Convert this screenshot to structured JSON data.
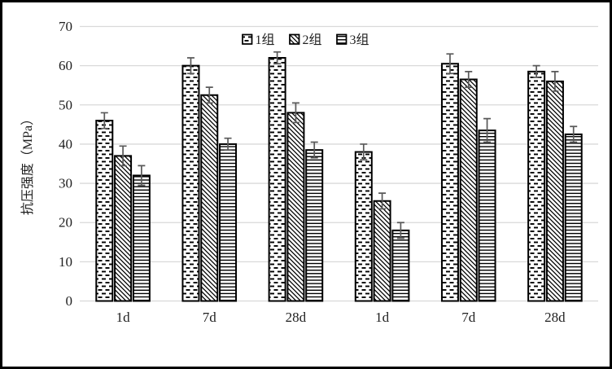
{
  "frame": {
    "background": "#ffffff",
    "border_color": "#000000"
  },
  "chart_data": {
    "type": "bar",
    "title": "",
    "categories": [
      "1d",
      "7d",
      "28d",
      "1d",
      "7d",
      "28d"
    ],
    "series": [
      {
        "name": "1组",
        "pattern": "dashed",
        "values": [
          46,
          60,
          62,
          38,
          60.5,
          58.5
        ],
        "errors": [
          2,
          2,
          1.5,
          2,
          2.5,
          1.5
        ]
      },
      {
        "name": "2组",
        "pattern": "diagonal",
        "values": [
          37,
          52.5,
          48,
          25.5,
          56.5,
          56
        ],
        "errors": [
          2.5,
          2,
          2.5,
          2,
          2,
          2.5
        ]
      },
      {
        "name": "3组",
        "pattern": "hlines",
        "values": [
          32,
          40,
          38.5,
          18,
          43.5,
          42.5
        ],
        "errors": [
          2.5,
          1.5,
          2,
          2,
          3,
          2
        ]
      }
    ],
    "xlabel": "",
    "ylabel": "抗压强度（MPa）",
    "ylim": [
      0,
      70
    ],
    "yticks": [
      0,
      10,
      20,
      30,
      40,
      50,
      60,
      70
    ],
    "grid": true,
    "legend_position": "top-center",
    "colors": {
      "bar_fill": "#ffffff",
      "bar_border": "#000000",
      "pattern_ink": "#000000",
      "error_bar": "#595959",
      "gridline": "#d9d9d9",
      "text": "#1f1f1f"
    }
  }
}
